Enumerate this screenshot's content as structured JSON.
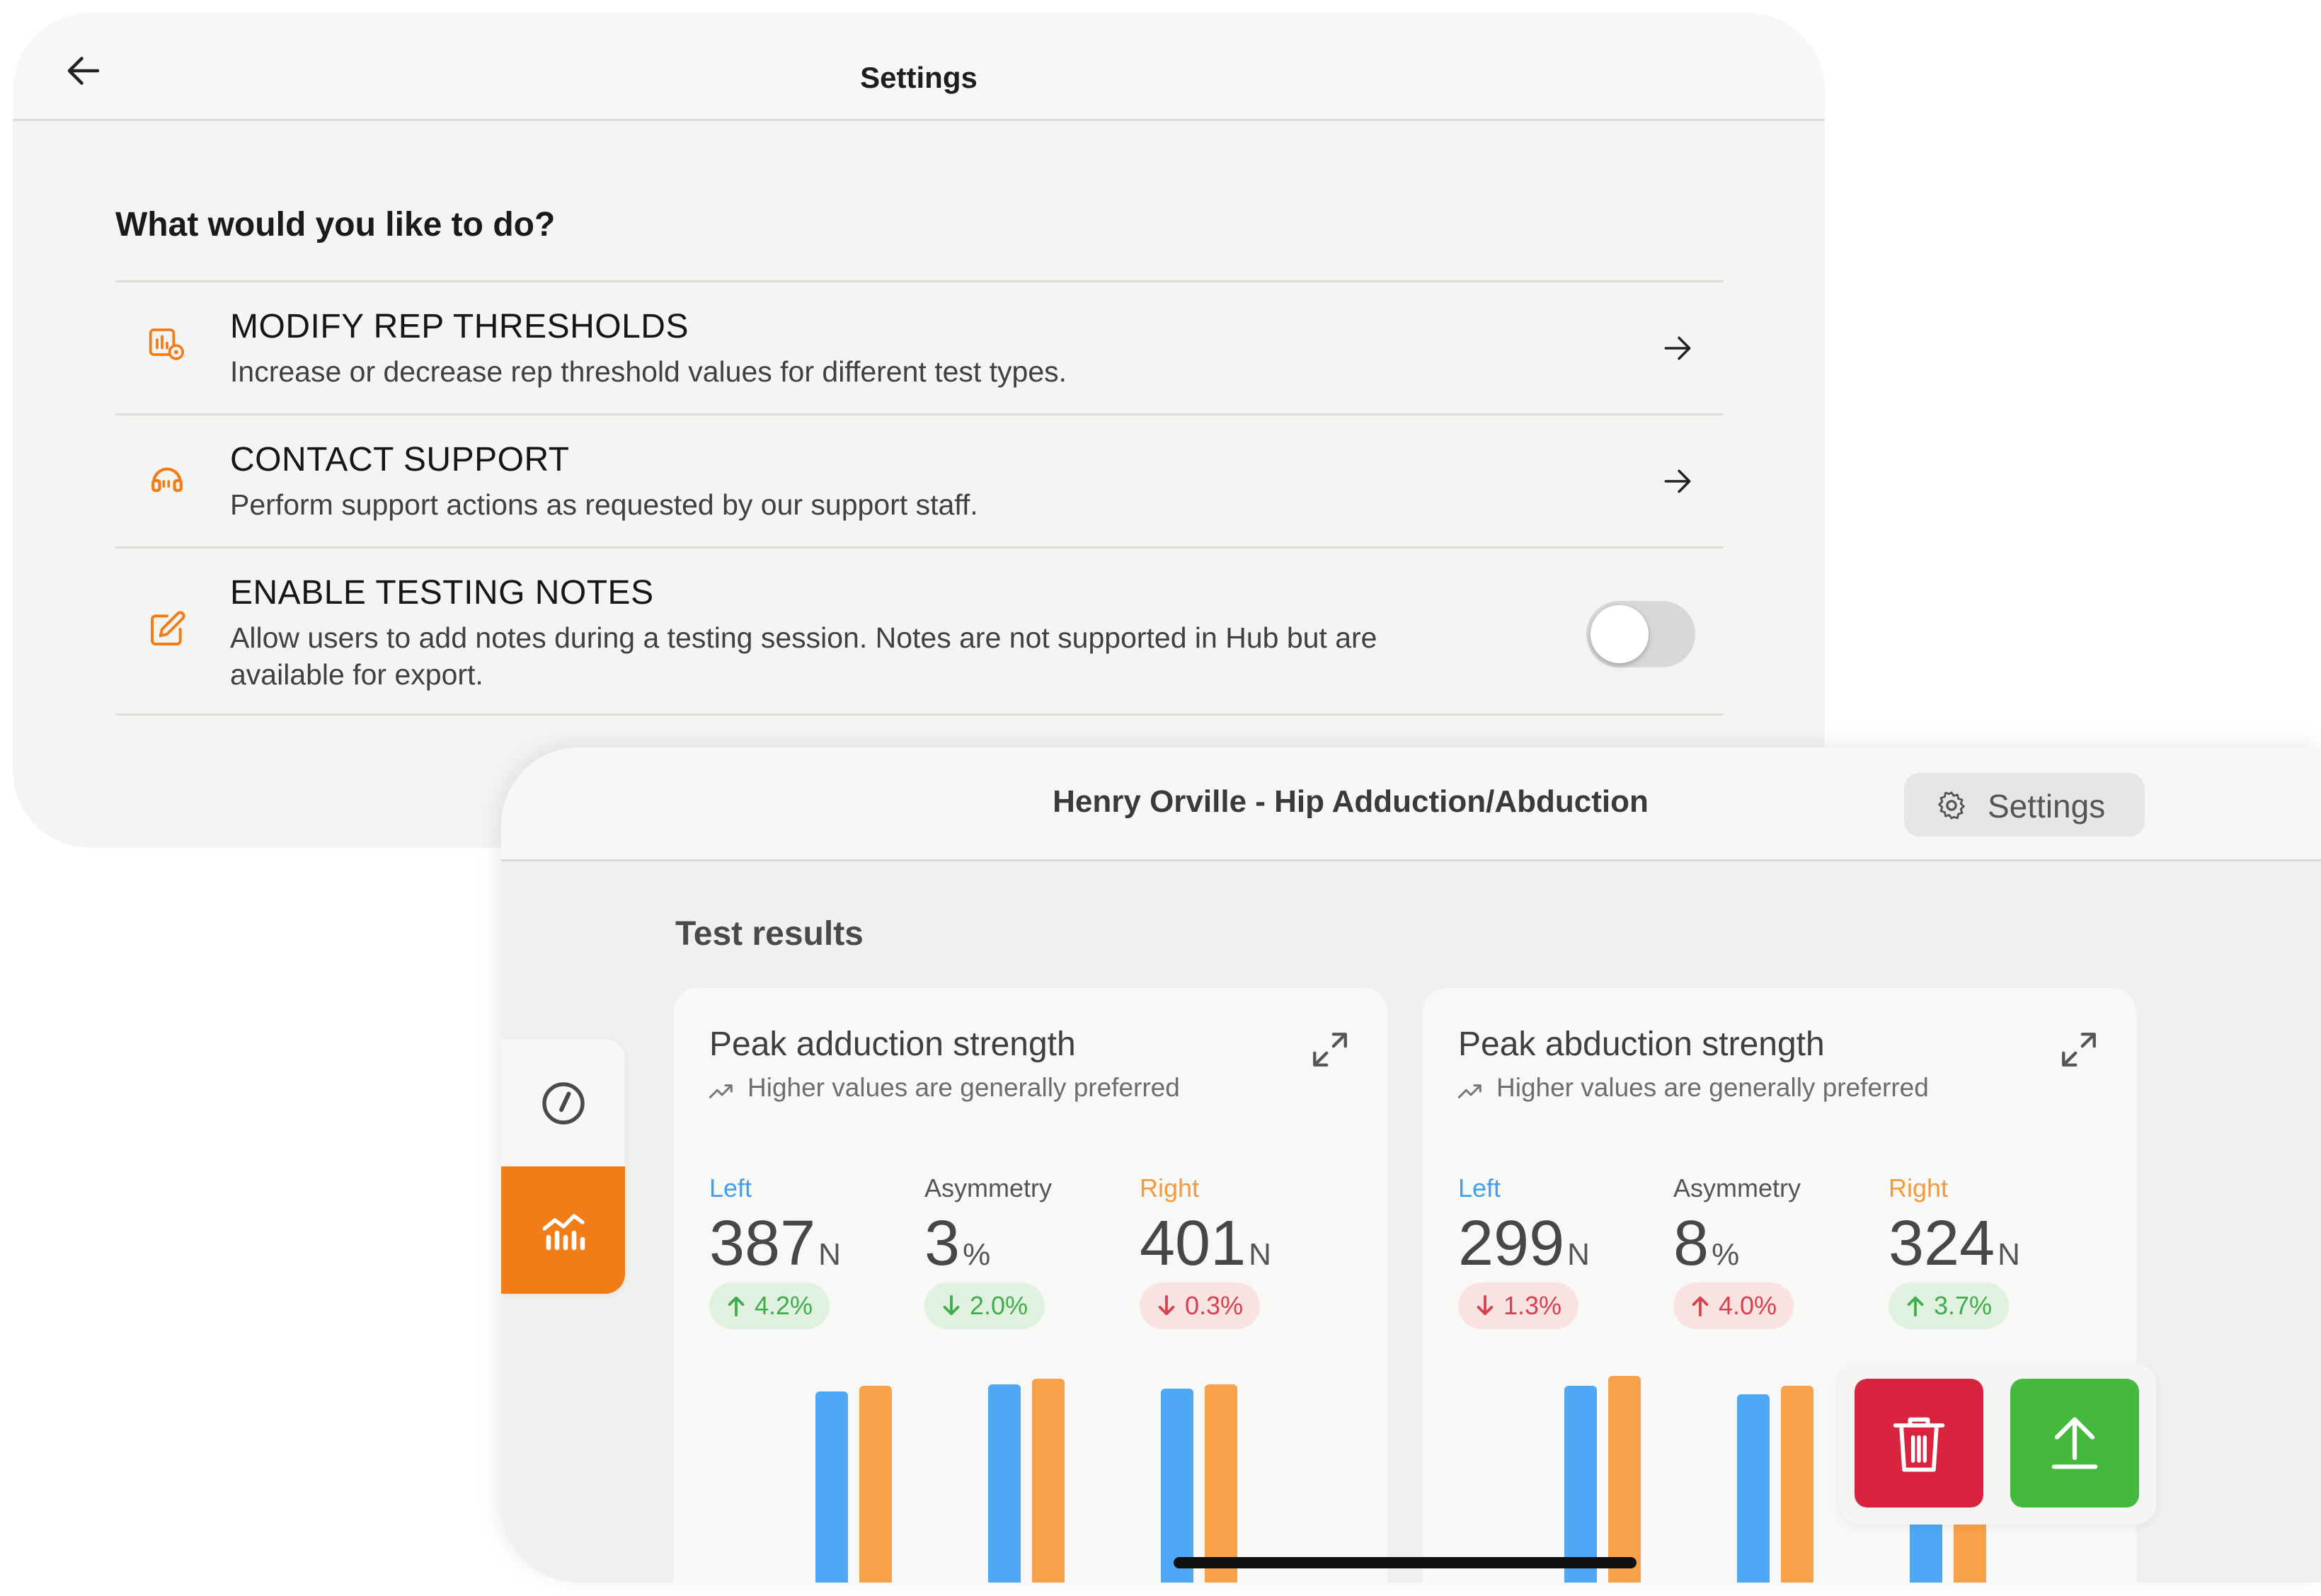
{
  "settings_screen": {
    "title": "Settings",
    "question": "What would you like to do?",
    "options": [
      {
        "title": "MODIFY REP THRESHOLDS",
        "description": "Increase or decrease rep threshold values for different test types.",
        "icon": "chart-settings-icon",
        "control": "arrow"
      },
      {
        "title": "CONTACT SUPPORT",
        "description": "Perform support actions as requested by our support staff.",
        "icon": "headset-icon",
        "control": "arrow"
      },
      {
        "title": "ENABLE TESTING NOTES",
        "description": "Allow users to add notes during a testing session. Notes are not supported in Hub but are available for export.",
        "icon": "edit-icon",
        "control": "toggle",
        "enabled": false
      }
    ]
  },
  "results_screen": {
    "title": "Henry Orville - Hip Adduction/Abduction",
    "settings_button": "Settings",
    "section_title": "Test results",
    "nav": [
      {
        "icon": "gauge-icon",
        "active": false
      },
      {
        "icon": "analytics-chart-icon",
        "active": true
      }
    ],
    "cards": [
      {
        "title": "Peak adduction strength",
        "hint": "Higher values are generally preferred",
        "left": {
          "label": "Left",
          "value": "387",
          "unit": "N",
          "change": "4.2%",
          "direction": "up",
          "status": "good"
        },
        "asymmetry": {
          "label": "Asymmetry",
          "value": "3",
          "unit": "%",
          "change": "2.0%",
          "direction": "down",
          "status": "good"
        },
        "right": {
          "label": "Right",
          "value": "401",
          "unit": "N",
          "change": "0.3%",
          "direction": "down",
          "status": "bad"
        }
      },
      {
        "title": "Peak abduction strength",
        "hint": "Higher values are generally preferred",
        "left": {
          "label": "Left",
          "value": "299",
          "unit": "N",
          "change": "1.3%",
          "direction": "down",
          "status": "bad"
        },
        "asymmetry": {
          "label": "Asymmetry",
          "value": "8",
          "unit": "%",
          "change": "4.0%",
          "direction": "up",
          "status": "bad"
        },
        "right": {
          "label": "Right",
          "value": "324",
          "unit": "N",
          "change": "3.7%",
          "direction": "up",
          "status": "good"
        }
      }
    ],
    "actions": [
      {
        "icon": "trash-icon",
        "color": "#d8243f"
      },
      {
        "icon": "upload-icon",
        "color": "#45b83f"
      }
    ]
  },
  "colors": {
    "accent": "#f07d17",
    "left_series": "#4ea8f5",
    "right_series": "#f8a04a",
    "good": "#3eae4a",
    "bad": "#d9404d"
  }
}
